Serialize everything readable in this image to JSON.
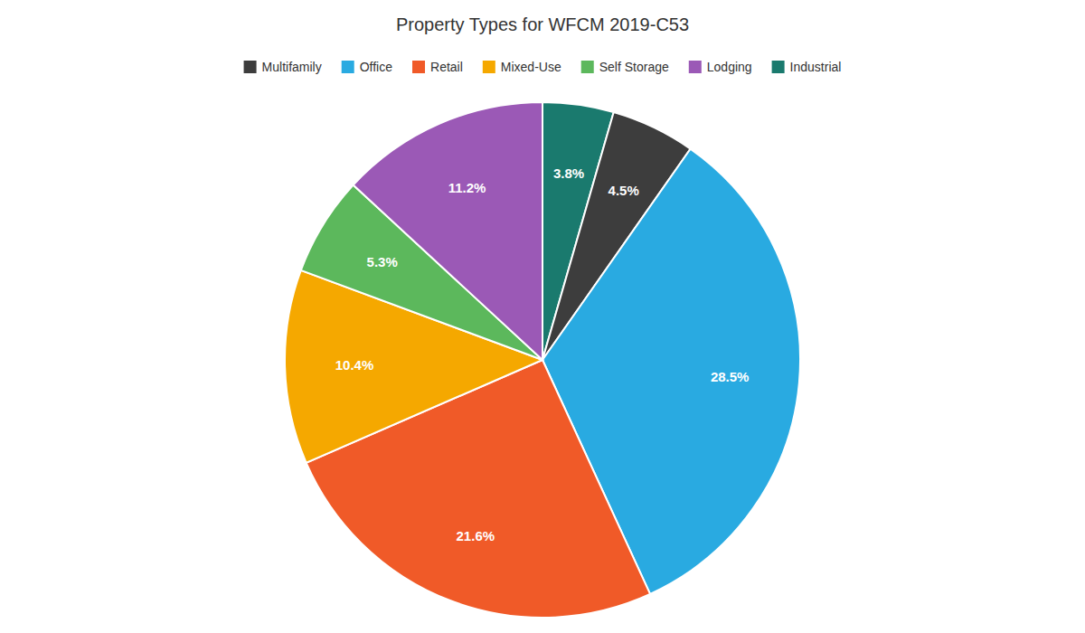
{
  "chart_data": {
    "type": "pie",
    "title": "Property Types for WFCM 2019-C53",
    "categories": [
      "Industrial",
      "Multifamily",
      "Office",
      "Retail",
      "Mixed-Use",
      "Self Storage",
      "Lodging"
    ],
    "values": [
      3.8,
      4.5,
      28.5,
      21.6,
      10.4,
      5.3,
      11.2
    ],
    "value_labels": [
      "3.8%",
      "4.5%",
      "28.5%",
      "21.6%",
      "10.4%",
      "5.3%",
      "11.2%"
    ],
    "colors": [
      "#1a7a6e",
      "#3d3d3d",
      "#29aae1",
      "#f05a28",
      "#f5a800",
      "#5cb85c",
      "#9b59b6"
    ],
    "data_labels": true,
    "legend": "top",
    "legend_labels": [
      "Multifamily",
      "Office",
      "Retail",
      "Mixed-Use",
      "Self Storage",
      "Lodging",
      "Industrial"
    ]
  }
}
